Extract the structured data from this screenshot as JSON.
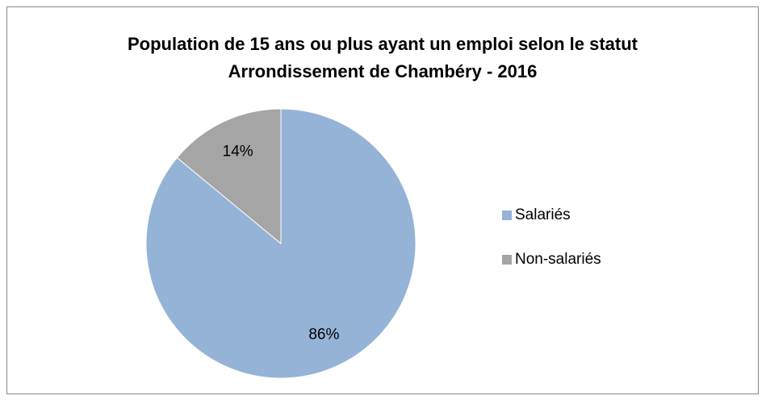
{
  "chart_data": {
    "type": "pie",
    "title": "Population de 15 ans ou plus ayant un emploi selon le statut",
    "subtitle": "Arrondissement de Chambéry - 2016",
    "categories": [
      "Salariés",
      "Non-salariés"
    ],
    "values": [
      86,
      14
    ],
    "value_labels": [
      "86%",
      "14%"
    ],
    "colors": [
      "#95b3d7",
      "#a5a5a5"
    ],
    "legend": "right"
  }
}
